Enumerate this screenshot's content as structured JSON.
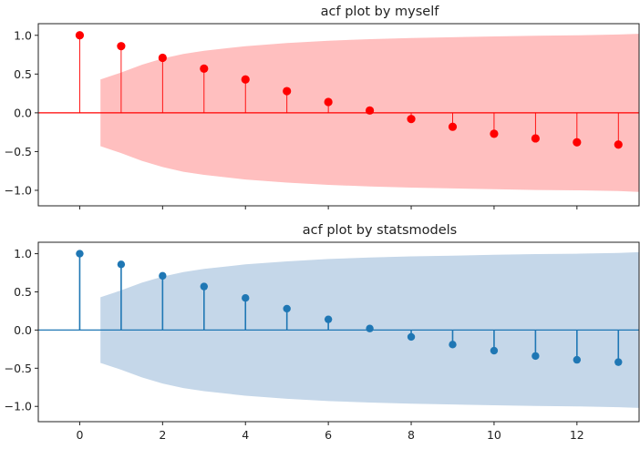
{
  "chart_data": [
    {
      "type": "stem",
      "title": "acf plot by myself",
      "x": [
        0,
        1,
        2,
        3,
        4,
        5,
        6,
        7,
        8,
        9,
        10,
        11,
        12,
        13
      ],
      "values": [
        1.0,
        0.86,
        0.71,
        0.57,
        0.43,
        0.28,
        0.14,
        0.03,
        -0.08,
        -0.18,
        -0.27,
        -0.33,
        -0.38,
        -0.41
      ],
      "confidence_band": {
        "x": [
          0.5,
          1,
          1.5,
          2,
          2.5,
          3,
          4,
          5,
          6,
          7,
          8,
          9,
          10,
          11,
          12,
          13,
          13.5
        ],
        "upper": [
          0.43,
          0.52,
          0.62,
          0.7,
          0.76,
          0.8,
          0.86,
          0.9,
          0.93,
          0.95,
          0.965,
          0.975,
          0.985,
          0.995,
          1.0,
          1.01,
          1.02
        ],
        "lower": [
          -0.43,
          -0.52,
          -0.62,
          -0.7,
          -0.76,
          -0.8,
          -0.86,
          -0.9,
          -0.93,
          -0.95,
          -0.965,
          -0.975,
          -0.985,
          -0.995,
          -1.0,
          -1.01,
          -1.02
        ]
      },
      "xlim": [
        -1,
        13.5
      ],
      "ylim": [
        -1.2,
        1.15
      ],
      "yticks": [
        "1.0",
        "0.5",
        "0.0",
        "−0.5",
        "−1.0"
      ],
      "ytick_values": [
        1.0,
        0.5,
        0.0,
        -0.5,
        -1.0
      ],
      "xticks": [
        0,
        2,
        4,
        6,
        8,
        10,
        12
      ],
      "show_xtick_labels": false,
      "colors": {
        "marker": "#ff0000",
        "stem": "#ff0000",
        "band": "#ffbfbf",
        "baseline": "#ff0000"
      }
    },
    {
      "type": "stem",
      "title": "acf plot by statsmodels",
      "x": [
        0,
        1,
        2,
        3,
        4,
        5,
        6,
        7,
        8,
        9,
        10,
        11,
        12,
        13
      ],
      "values": [
        1.0,
        0.86,
        0.71,
        0.57,
        0.42,
        0.28,
        0.14,
        0.02,
        -0.09,
        -0.19,
        -0.27,
        -0.34,
        -0.39,
        -0.42
      ],
      "confidence_band": {
        "x": [
          0.5,
          1,
          1.5,
          2,
          2.5,
          3,
          4,
          5,
          6,
          7,
          8,
          9,
          10,
          11,
          12,
          13,
          13.5
        ],
        "upper": [
          0.43,
          0.52,
          0.62,
          0.7,
          0.76,
          0.8,
          0.86,
          0.9,
          0.93,
          0.95,
          0.965,
          0.975,
          0.985,
          0.995,
          1.0,
          1.01,
          1.02
        ],
        "lower": [
          -0.43,
          -0.52,
          -0.62,
          -0.7,
          -0.76,
          -0.8,
          -0.86,
          -0.9,
          -0.93,
          -0.95,
          -0.965,
          -0.975,
          -0.985,
          -0.995,
          -1.0,
          -1.01,
          -1.02
        ]
      },
      "xlim": [
        -1,
        13.5
      ],
      "ylim": [
        -1.2,
        1.15
      ],
      "yticks": [
        "1.0",
        "0.5",
        "0.0",
        "−0.5",
        "−1.0"
      ],
      "ytick_values": [
        1.0,
        0.5,
        0.0,
        -0.5,
        -1.0
      ],
      "xticks": [
        0,
        2,
        4,
        6,
        8,
        10,
        12
      ],
      "xtick_labels": [
        "0",
        "2",
        "4",
        "6",
        "8",
        "10",
        "12"
      ],
      "show_xtick_labels": true,
      "colors": {
        "marker": "#1f77b4",
        "stem": "#1f77b4",
        "band": "#c5d7e9",
        "baseline": "#1f77b4"
      }
    }
  ]
}
